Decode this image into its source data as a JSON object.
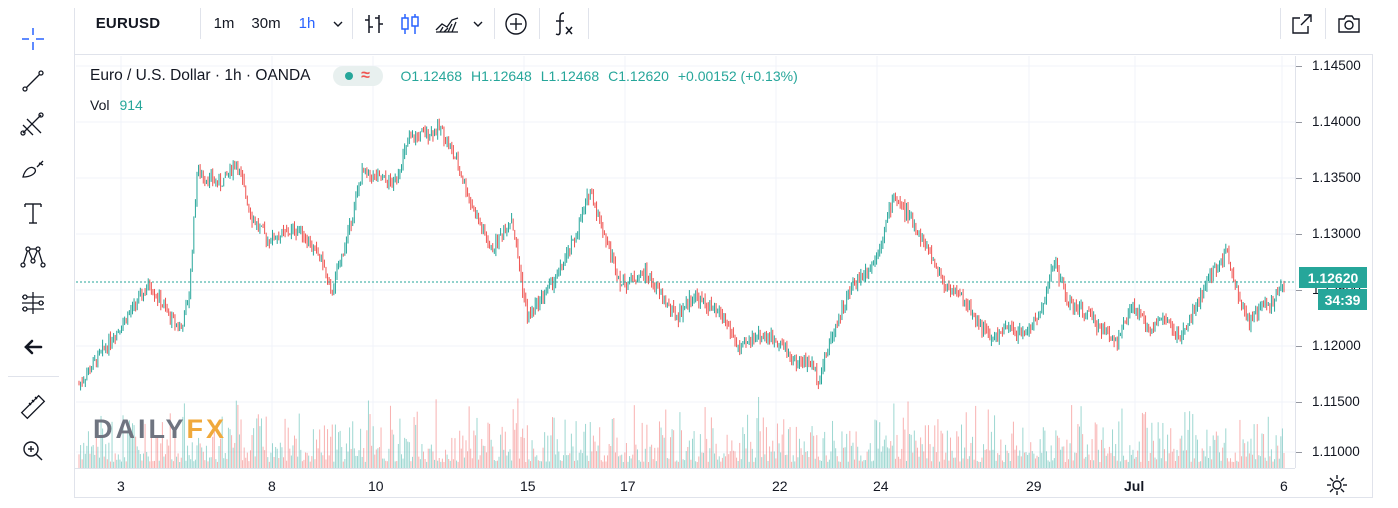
{
  "toolbar": {
    "symbol": "EURUSD",
    "intervals": [
      "1m",
      "30m",
      "1h"
    ],
    "active_interval": "1h"
  },
  "legend": {
    "title": "Euro / U.S. Dollar · 1h · OANDA",
    "open": "O1.12468",
    "high": "H1.12648",
    "low": "L1.12468",
    "close": "C1.12620",
    "change": "+0.00152 (+0.13%)",
    "vol_label": "Vol",
    "vol_value": "914"
  },
  "price_axis": {
    "labels": [
      "1.14500",
      "1.14000",
      "1.13500",
      "1.13000",
      "1.12500",
      "1.12000",
      "1.11500",
      "1.11000"
    ],
    "current_price": "1.12620",
    "countdown": "34:39"
  },
  "time_axis": {
    "labels": [
      {
        "text": "3",
        "bold": false
      },
      {
        "text": "8",
        "bold": false
      },
      {
        "text": "10",
        "bold": false
      },
      {
        "text": "15",
        "bold": false
      },
      {
        "text": "17",
        "bold": false
      },
      {
        "text": "22",
        "bold": false
      },
      {
        "text": "24",
        "bold": false
      },
      {
        "text": "29",
        "bold": false
      },
      {
        "text": "Jul",
        "bold": true
      },
      {
        "text": "6",
        "bold": false
      }
    ]
  },
  "watermark": {
    "a": "DAILY",
    "b": "FX"
  },
  "colors": {
    "up": "#26a69a",
    "down": "#ef5350",
    "accent": "#2962ff"
  },
  "chart_data": {
    "type": "candlestick",
    "ylim": [
      1.1095,
      1.1465
    ],
    "anchors": [
      [
        0,
        1.117
      ],
      [
        10,
        1.119
      ],
      [
        30,
        1.123
      ],
      [
        45,
        1.126
      ],
      [
        58,
        1.123
      ],
      [
        65,
        1.122
      ],
      [
        70,
        1.125
      ],
      [
        75,
        1.136
      ],
      [
        90,
        1.135
      ],
      [
        100,
        1.137
      ],
      [
        110,
        1.132
      ],
      [
        120,
        1.13
      ],
      [
        140,
        1.131
      ],
      [
        155,
        1.128
      ],
      [
        160,
        1.125
      ],
      [
        170,
        1.13
      ],
      [
        180,
        1.136
      ],
      [
        200,
        1.135
      ],
      [
        210,
        1.139
      ],
      [
        220,
        1.1395
      ],
      [
        230,
        1.14
      ],
      [
        240,
        1.137
      ],
      [
        250,
        1.133
      ],
      [
        262,
        1.129
      ],
      [
        275,
        1.132
      ],
      [
        285,
        1.123
      ],
      [
        295,
        1.125
      ],
      [
        305,
        1.127
      ],
      [
        315,
        1.13
      ],
      [
        325,
        1.1345
      ],
      [
        335,
        1.13
      ],
      [
        345,
        1.126
      ],
      [
        360,
        1.127
      ],
      [
        370,
        1.125
      ],
      [
        380,
        1.123
      ],
      [
        390,
        1.125
      ],
      [
        400,
        1.124
      ],
      [
        410,
        1.123
      ],
      [
        420,
        1.12
      ],
      [
        430,
        1.1215
      ],
      [
        445,
        1.121
      ],
      [
        455,
        1.119
      ],
      [
        465,
        1.119
      ],
      [
        470,
        1.1175
      ],
      [
        480,
        1.122
      ],
      [
        492,
        1.126
      ],
      [
        505,
        1.128
      ],
      [
        510,
        1.13
      ],
      [
        518,
        1.134
      ],
      [
        528,
        1.132
      ],
      [
        540,
        1.129
      ],
      [
        550,
        1.126
      ],
      [
        560,
        1.125
      ],
      [
        570,
        1.123
      ],
      [
        580,
        1.121
      ],
      [
        590,
        1.122
      ],
      [
        600,
        1.1215
      ],
      [
        610,
        1.123
      ],
      [
        620,
        1.128
      ],
      [
        630,
        1.124
      ],
      [
        640,
        1.1235
      ],
      [
        650,
        1.122
      ],
      [
        660,
        1.121
      ],
      [
        670,
        1.124
      ],
      [
        680,
        1.122
      ],
      [
        690,
        1.123
      ],
      [
        700,
        1.121
      ],
      [
        710,
        1.124
      ],
      [
        720,
        1.127
      ],
      [
        730,
        1.129
      ],
      [
        737,
        1.125
      ],
      [
        744,
        1.1225
      ],
      [
        752,
        1.124
      ],
      [
        760,
        1.1245
      ],
      [
        766,
        1.1262
      ]
    ],
    "series": [
      {
        "name": "EURUSD"
      },
      {
        "name": "Vol"
      }
    ]
  }
}
